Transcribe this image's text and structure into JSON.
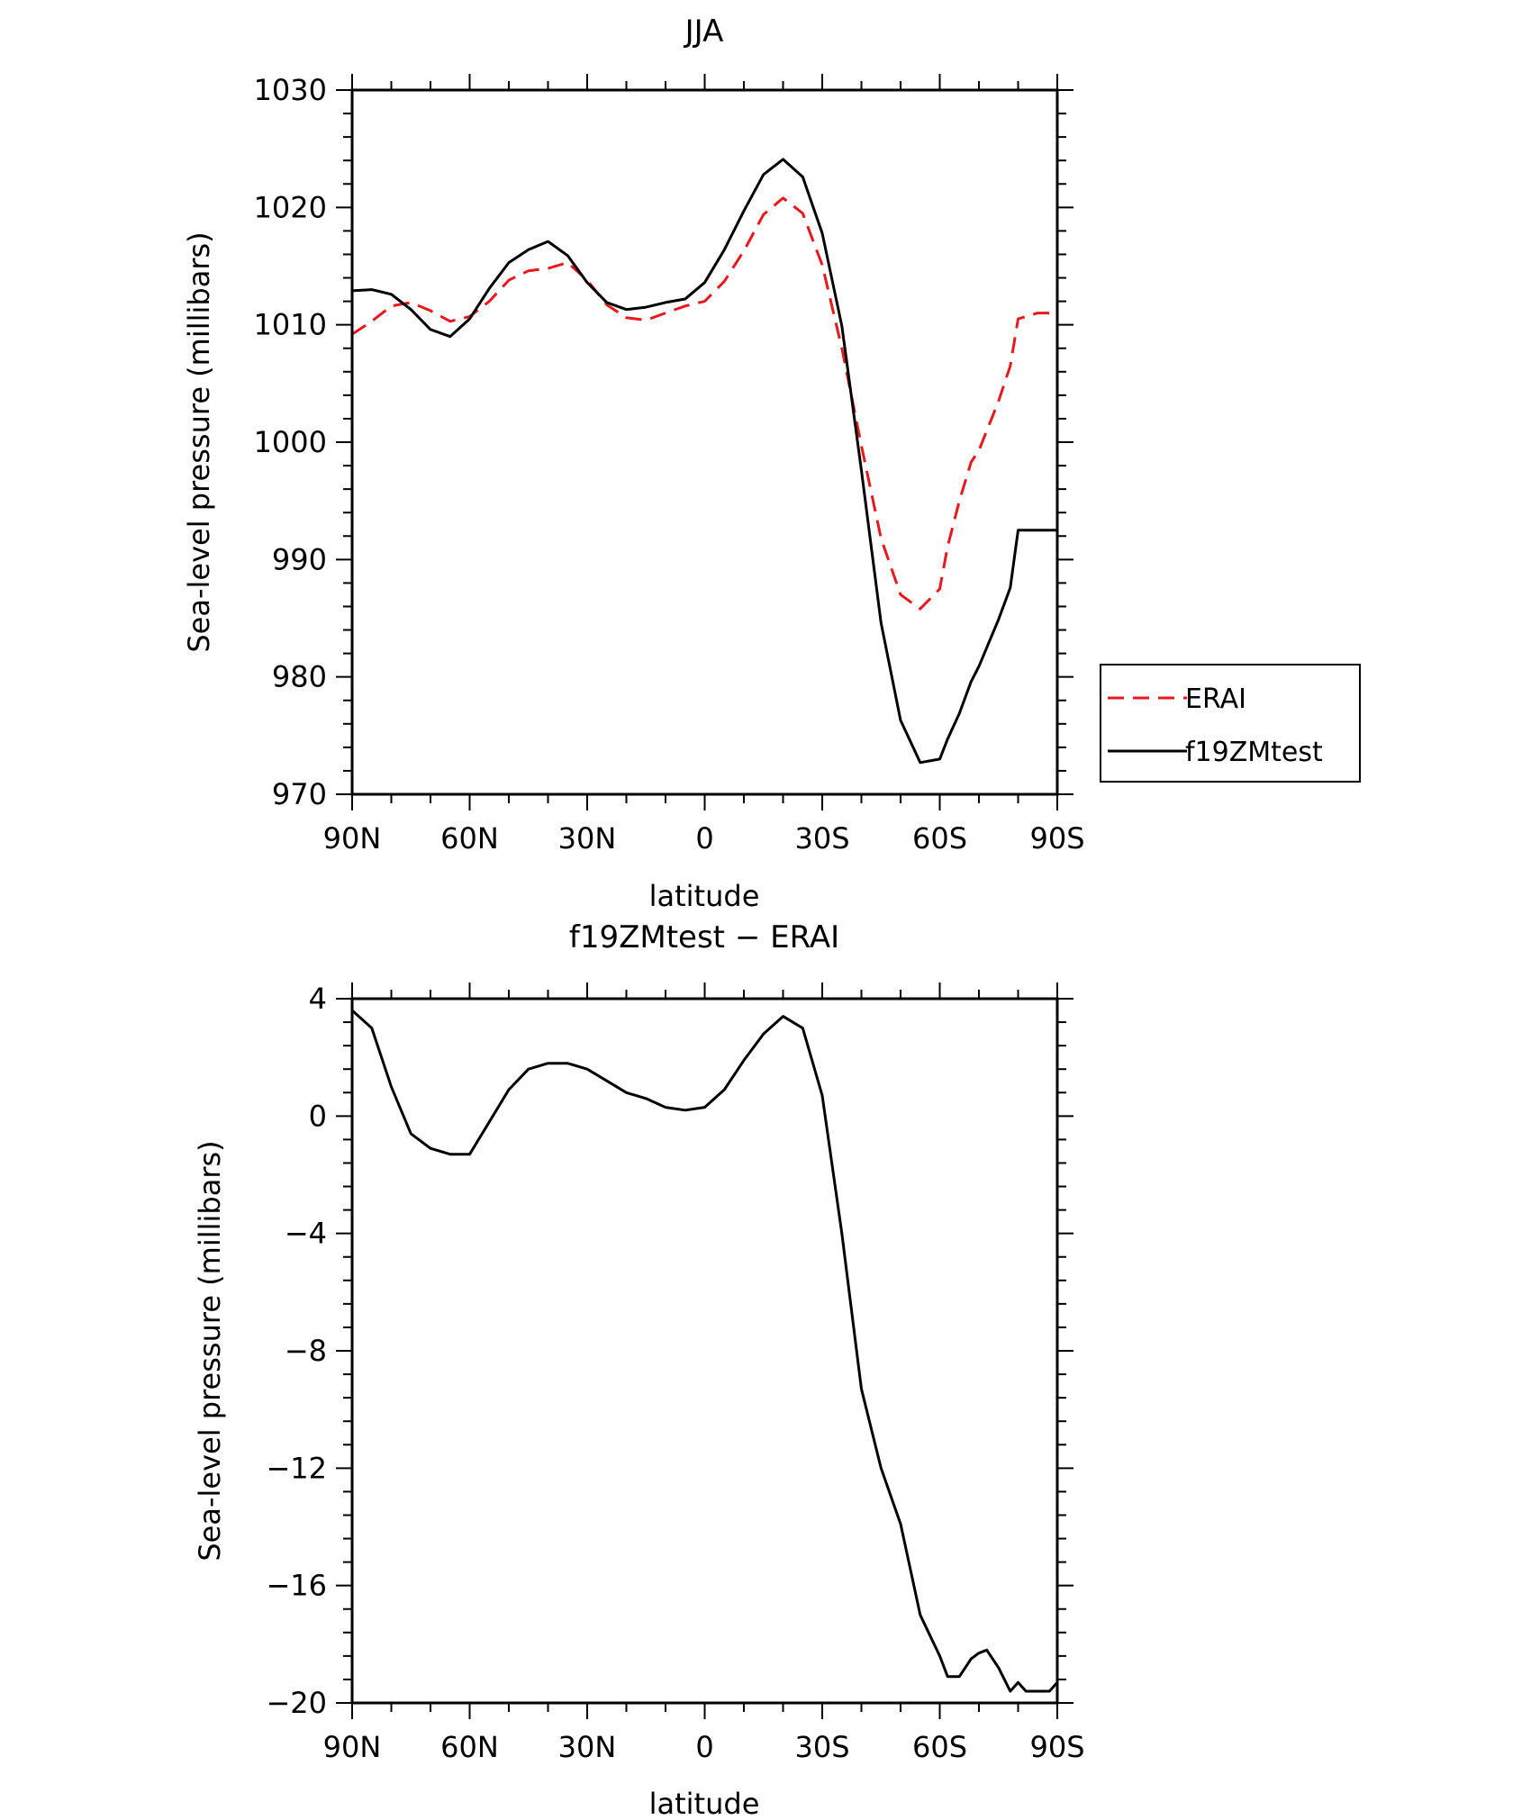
{
  "chart_data": [
    {
      "type": "line",
      "title": "JJA",
      "xlabel": "latitude",
      "ylabel": "Sea-level pressure (millibars)",
      "xlim": [
        90,
        -90
      ],
      "ylim": [
        970,
        1030
      ],
      "x_ticks": [
        90,
        60,
        30,
        0,
        -30,
        -60,
        -90
      ],
      "x_tick_labels": [
        "90N",
        "60N",
        "30N",
        "0",
        "30S",
        "60S",
        "90S"
      ],
      "y_ticks": [
        970,
        980,
        990,
        1000,
        1010,
        1020,
        1030
      ],
      "y_tick_labels": [
        "970",
        "980",
        "990",
        "1000",
        "1010",
        "1020",
        "1030"
      ],
      "legend_placement": "right",
      "series": [
        {
          "name": "ERAI",
          "color": "#e8191c",
          "dash": "dashed",
          "x": [
            90,
            85,
            80,
            75,
            70,
            65,
            60,
            55,
            50,
            45,
            40,
            35,
            30,
            25,
            20,
            15,
            10,
            5,
            0,
            -5,
            -10,
            -15,
            -20,
            -25,
            -30,
            -35,
            -40,
            -45,
            -50,
            -55,
            -60,
            -62,
            -65,
            -68,
            -70,
            -75,
            -78,
            -80,
            -85,
            -90
          ],
          "y": [
            1009.2,
            1010.3,
            1011.6,
            1011.9,
            1011.2,
            1010.3,
            1010.7,
            1012.0,
            1013.8,
            1014.6,
            1014.8,
            1015.3,
            1013.8,
            1011.7,
            1010.6,
            1010.4,
            1011.0,
            1011.6,
            1012.0,
            1013.7,
            1016.3,
            1019.4,
            1020.8,
            1019.5,
            1015.1,
            1008.0,
            999.7,
            991.8,
            987.0,
            985.8,
            987.5,
            991.1,
            995.0,
            998.3,
            999.3,
            1003.5,
            1006.5,
            1010.5,
            1011.0,
            1011.0
          ]
        },
        {
          "name": "f19ZMtest",
          "color": "#000000",
          "dash": "solid",
          "x": [
            90,
            85,
            80,
            75,
            70,
            65,
            60,
            55,
            50,
            45,
            40,
            35,
            30,
            25,
            20,
            15,
            10,
            5,
            0,
            -5,
            -10,
            -15,
            -20,
            -25,
            -30,
            -35,
            -40,
            -45,
            -50,
            -55,
            -60,
            -62,
            -65,
            -68,
            -70,
            -75,
            -78,
            -80,
            -85,
            -90
          ],
          "y": [
            1012.9,
            1013.0,
            1012.6,
            1011.3,
            1009.6,
            1009.0,
            1010.5,
            1013.1,
            1015.3,
            1016.4,
            1017.1,
            1015.9,
            1013.6,
            1011.9,
            1011.3,
            1011.5,
            1011.9,
            1012.2,
            1013.6,
            1016.4,
            1019.7,
            1022.8,
            1024.1,
            1022.6,
            1017.8,
            1009.9,
            997.6,
            984.6,
            976.3,
            972.7,
            973.0,
            974.7,
            976.9,
            979.6,
            980.9,
            984.9,
            987.6,
            992.5,
            992.5,
            992.5
          ]
        }
      ]
    },
    {
      "type": "line",
      "title": "f19ZMtest − ERAI",
      "xlabel": "latitude",
      "ylabel": "Sea-level pressure (millibars)",
      "xlim": [
        90,
        -90
      ],
      "ylim": [
        -20,
        4
      ],
      "x_ticks": [
        90,
        60,
        30,
        0,
        -30,
        -60,
        -90
      ],
      "x_tick_labels": [
        "90N",
        "60N",
        "30N",
        "0",
        "30S",
        "60S",
        "90S"
      ],
      "y_ticks": [
        -20,
        -16,
        -12,
        -8,
        -4,
        0,
        4
      ],
      "y_tick_labels": [
        "−20",
        "−16",
        "−12",
        "−8",
        "−4",
        "0",
        "4"
      ],
      "series": [
        {
          "color": "#000000",
          "dash": "solid",
          "x": [
            90,
            85,
            80,
            75,
            70,
            65,
            60,
            55,
            50,
            45,
            40,
            35,
            30,
            25,
            20,
            15,
            10,
            5,
            0,
            -5,
            -10,
            -15,
            -20,
            -25,
            -30,
            -35,
            -40,
            -45,
            -50,
            -55,
            -60,
            -62,
            -65,
            -68,
            -70,
            -72,
            -75,
            -78,
            -80,
            -82,
            -85,
            -87,
            -88,
            -90
          ],
          "y": [
            3.6,
            3.0,
            1.0,
            -0.6,
            -1.1,
            -1.3,
            -1.3,
            -0.2,
            0.9,
            1.6,
            1.8,
            1.8,
            1.6,
            1.2,
            0.8,
            0.6,
            0.3,
            0.2,
            0.3,
            0.9,
            1.9,
            2.8,
            3.4,
            3.0,
            0.7,
            -4.0,
            -9.3,
            -12.0,
            -13.9,
            -17.0,
            -18.4,
            -19.1,
            -19.1,
            -18.5,
            -18.3,
            -18.2,
            -18.8,
            -19.6,
            -19.3,
            -19.6,
            -19.6,
            -19.6,
            -19.6,
            -19.3
          ]
        }
      ]
    }
  ]
}
